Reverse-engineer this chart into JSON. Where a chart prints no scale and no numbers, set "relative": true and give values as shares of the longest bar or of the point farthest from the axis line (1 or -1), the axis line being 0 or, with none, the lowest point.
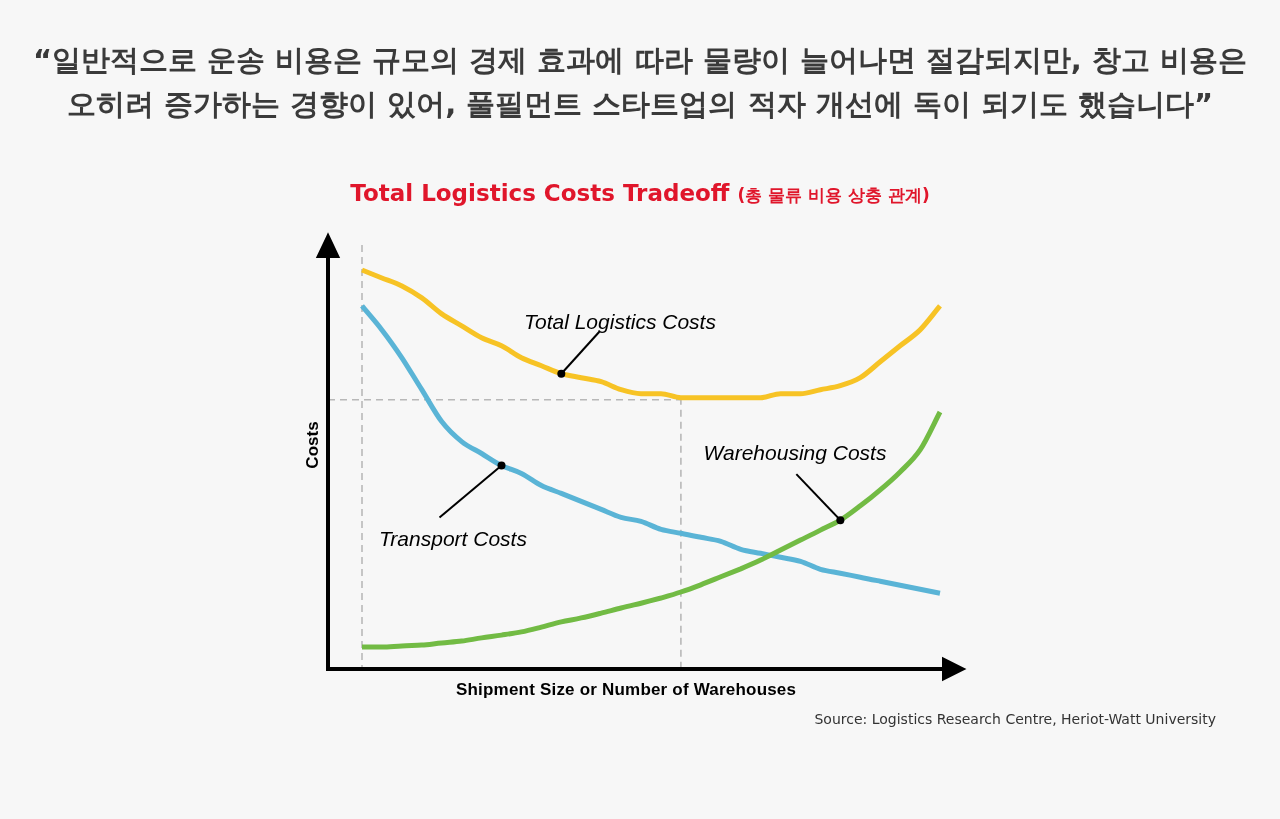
{
  "chart_data": {
    "type": "line",
    "title": "“일반적으로 운송 비용은 규모의 경제 효과에 따라 물량이 늘어나면 절감되지만, 창고 비용은 오히려 증가하는 경향이 있어, 풀필먼트 스타트업의 적자 개선에 독이 되기도 했습니다”",
    "subtitle": "Total Logistics Costs Tradeoff (총 물류 비용 상충 관계)",
    "xlabel": "Shipment Size or Number of Warehouses",
    "ylabel": "Costs",
    "relative": true,
    "categories": [
      null,
      null,
      null,
      null,
      null,
      null,
      null,
      null,
      null,
      null,
      null,
      null,
      null,
      null,
      null,
      null,
      null,
      null,
      null,
      null,
      null,
      null,
      null,
      null,
      null,
      null,
      null,
      null,
      null,
      null
    ],
    "series": [
      {
        "name": "Total Logistics Costs",
        "color": "#f7c325",
        "values": [
          1.0,
          0.98,
          0.96,
          0.93,
          0.89,
          0.86,
          0.83,
          0.81,
          0.78,
          0.76,
          0.74,
          0.73,
          0.72,
          0.7,
          0.69,
          0.69,
          0.68,
          0.68,
          0.68,
          0.68,
          0.68,
          0.69,
          0.69,
          0.7,
          0.71,
          0.73,
          0.77,
          0.81,
          0.85,
          0.91
        ]
      },
      {
        "name": "Transport Costs",
        "color": "#5ab4d6",
        "values": [
          0.91,
          0.85,
          0.78,
          0.7,
          0.62,
          0.57,
          0.54,
          0.51,
          0.49,
          0.46,
          0.44,
          0.42,
          0.4,
          0.38,
          0.37,
          0.35,
          0.34,
          0.33,
          0.32,
          0.3,
          0.29,
          0.28,
          0.27,
          0.25,
          0.24,
          0.23,
          0.22,
          0.21,
          0.2,
          0.19
        ]
      },
      {
        "name": "Warehousing Costs",
        "color": "#72bb44",
        "values": [
          0.055,
          0.055,
          0.058,
          0.06,
          0.065,
          0.07,
          0.078,
          0.085,
          0.093,
          0.105,
          0.118,
          0.128,
          0.14,
          0.153,
          0.165,
          0.178,
          0.193,
          0.211,
          0.231,
          0.251,
          0.273,
          0.298,
          0.323,
          0.348,
          0.373,
          0.409,
          0.449,
          0.494,
          0.549,
          0.644
        ]
      }
    ],
    "ref_lines": [
      {
        "axis": "y",
        "value": 0.675,
        "color": "#b8b8b8",
        "line_style": "dashed"
      }
    ],
    "annotations": [
      "Source: Logistics Research Centre, Heriot-Watt University"
    ]
  }
}
